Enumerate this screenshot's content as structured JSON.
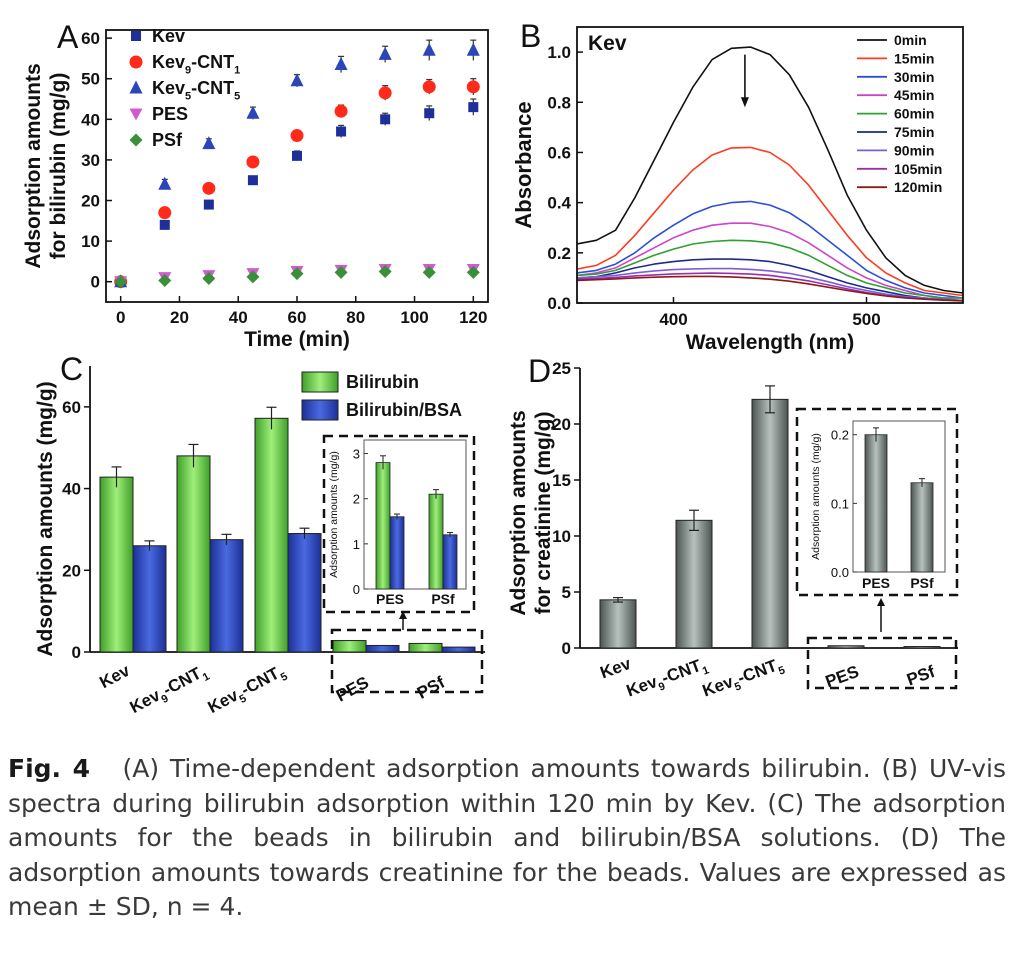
{
  "caption": {
    "label": "Fig. 4",
    "text": "(A) Time-dependent adsorption amounts towards bilirubin. (B) UV-vis spectra during bilirubin adsorption within 120 min by Kev. (C) The adsorption amounts for the beads in bilirubin and bilirubin/BSA solutions. (D) The adsorption amounts towards creatinine for the beads. Values are expressed as mean ± SD, n = 4."
  },
  "chart_data": [
    {
      "panel": "A",
      "type": "scatter",
      "xlabel": "Time (min)",
      "ylabel": "Adsorption amounts for bilirubin (mg/g)",
      "ylabel_lines": [
        "Adsorption amounts",
        "for bilirubin (mg/g)"
      ],
      "xlim": [
        -5,
        125
      ],
      "ylim": [
        -5,
        62
      ],
      "xticks": [
        0,
        20,
        40,
        60,
        80,
        100,
        120
      ],
      "yticks": [
        0,
        10,
        20,
        30,
        40,
        50,
        60
      ],
      "legend_position": "top-left",
      "x": [
        0,
        15,
        30,
        45,
        60,
        75,
        90,
        105,
        120
      ],
      "series": [
        {
          "name": "Kev",
          "marker": "square",
          "color": "#1f2f9a",
          "values": [
            0,
            14,
            19,
            25,
            31,
            37,
            40,
            41.5,
            43
          ],
          "errors": [
            0,
            0.8,
            0.8,
            1,
            1.2,
            1.5,
            1.5,
            1.8,
            2
          ]
        },
        {
          "name": "Kev9-CNT1",
          "base": "Kev",
          "sub1": "9",
          "mid": "-CNT",
          "sub2": "1",
          "marker": "circle",
          "color": "#ff2a1a",
          "values": [
            0,
            17,
            23,
            29.5,
            36,
            42,
            46.5,
            48,
            48
          ],
          "errors": [
            0,
            0.8,
            0.8,
            1,
            1.2,
            1.5,
            1.8,
            1.8,
            2
          ]
        },
        {
          "name": "Kev5-CNT5",
          "base": "Kev",
          "sub1": "5",
          "mid": "-CNT",
          "sub2": "5",
          "marker": "triangle-up",
          "color": "#2c45b8",
          "values": [
            0,
            24,
            34,
            41.5,
            49.5,
            53.5,
            56,
            57,
            57
          ],
          "errors": [
            0,
            1.2,
            1.2,
            1.5,
            1.5,
            2,
            2,
            2.5,
            2.5
          ]
        },
        {
          "name": "PES",
          "marker": "triangle-down",
          "color": "#d15ad1",
          "values": [
            0,
            1,
            1.5,
            2,
            2.5,
            2.8,
            3,
            3,
            3
          ],
          "errors": [
            0,
            0.3,
            0.3,
            0.3,
            0.3,
            0.3,
            0.3,
            0.3,
            0.3
          ]
        },
        {
          "name": "PSf",
          "marker": "diamond",
          "color": "#3a8f3a",
          "values": [
            0,
            0.3,
            0.8,
            1.2,
            2,
            2.3,
            2.5,
            2.3,
            2.3
          ],
          "errors": [
            0,
            0.3,
            0.3,
            0.3,
            0.3,
            0.3,
            0.3,
            0.3,
            0.3
          ]
        }
      ]
    },
    {
      "panel": "B",
      "type": "line",
      "title": "Kev",
      "xlabel": "Wavelength (nm)",
      "ylabel": "Absorbance",
      "xlim": [
        350,
        550
      ],
      "ylim": [
        0,
        1.1
      ],
      "xticks": [
        400,
        500
      ],
      "yticks": [
        0.0,
        0.2,
        0.4,
        0.6,
        0.8,
        1.0
      ],
      "legend_position": "top-right",
      "arrow": {
        "x": 437,
        "y_from": 0.99,
        "y_to": 0.78
      },
      "x": [
        350,
        360,
        370,
        380,
        390,
        400,
        410,
        420,
        430,
        440,
        450,
        460,
        470,
        480,
        490,
        500,
        510,
        520,
        530,
        540,
        550
      ],
      "series": [
        {
          "name": "0min",
          "color": "#111111",
          "values": [
            0.235,
            0.25,
            0.29,
            0.42,
            0.57,
            0.72,
            0.86,
            0.97,
            1.015,
            1.02,
            0.99,
            0.91,
            0.78,
            0.61,
            0.43,
            0.29,
            0.18,
            0.11,
            0.07,
            0.05,
            0.04
          ]
        },
        {
          "name": "15min",
          "color": "#ff3b1f",
          "values": [
            0.135,
            0.15,
            0.19,
            0.27,
            0.36,
            0.45,
            0.53,
            0.59,
            0.618,
            0.62,
            0.6,
            0.55,
            0.47,
            0.37,
            0.27,
            0.18,
            0.12,
            0.08,
            0.05,
            0.04,
            0.03
          ]
        },
        {
          "name": "30min",
          "color": "#2b4fd6",
          "values": [
            0.12,
            0.13,
            0.155,
            0.2,
            0.26,
            0.31,
            0.355,
            0.385,
            0.4,
            0.405,
            0.39,
            0.36,
            0.31,
            0.25,
            0.19,
            0.13,
            0.09,
            0.06,
            0.04,
            0.03,
            0.02
          ]
        },
        {
          "name": "45min",
          "color": "#cc44cc",
          "values": [
            0.11,
            0.12,
            0.14,
            0.18,
            0.22,
            0.26,
            0.29,
            0.31,
            0.318,
            0.318,
            0.305,
            0.28,
            0.24,
            0.19,
            0.14,
            0.1,
            0.07,
            0.05,
            0.03,
            0.02,
            0.02
          ]
        },
        {
          "name": "60min",
          "color": "#2fa02f",
          "values": [
            0.11,
            0.115,
            0.13,
            0.16,
            0.19,
            0.215,
            0.235,
            0.245,
            0.25,
            0.248,
            0.24,
            0.22,
            0.19,
            0.15,
            0.11,
            0.08,
            0.06,
            0.04,
            0.03,
            0.02,
            0.02
          ]
        },
        {
          "name": "75min",
          "color": "#1b2a8c",
          "values": [
            0.1,
            0.105,
            0.12,
            0.14,
            0.155,
            0.165,
            0.172,
            0.175,
            0.175,
            0.172,
            0.165,
            0.15,
            0.13,
            0.105,
            0.08,
            0.06,
            0.045,
            0.03,
            0.02,
            0.015,
            0.01
          ]
        },
        {
          "name": "90min",
          "color": "#7a5fd8",
          "values": [
            0.1,
            0.105,
            0.11,
            0.12,
            0.128,
            0.133,
            0.136,
            0.137,
            0.137,
            0.134,
            0.128,
            0.118,
            0.103,
            0.085,
            0.065,
            0.05,
            0.035,
            0.025,
            0.02,
            0.015,
            0.01
          ]
        },
        {
          "name": "105min",
          "color": "#9a2fa8",
          "values": [
            0.095,
            0.098,
            0.102,
            0.108,
            0.112,
            0.116,
            0.118,
            0.119,
            0.118,
            0.115,
            0.11,
            0.1,
            0.088,
            0.072,
            0.056,
            0.042,
            0.03,
            0.022,
            0.016,
            0.012,
            0.01
          ]
        },
        {
          "name": "120min",
          "color": "#8b1a1a",
          "values": [
            0.09,
            0.093,
            0.096,
            0.1,
            0.103,
            0.105,
            0.106,
            0.106,
            0.104,
            0.1,
            0.095,
            0.087,
            0.076,
            0.063,
            0.05,
            0.038,
            0.028,
            0.02,
            0.015,
            0.011,
            0.008
          ]
        }
      ]
    },
    {
      "panel": "C",
      "type": "bar",
      "ylabel": "Adsorption amounts (mg/g)",
      "ylim": [
        0,
        70
      ],
      "yticks": [
        0,
        20,
        40,
        60
      ],
      "legend_position": "top-right",
      "categories": [
        {
          "label": "Kev"
        },
        {
          "label": "Kev9-CNT1",
          "base": "Kev",
          "sub1": "9",
          "mid": "-CNT",
          "sub2": "1"
        },
        {
          "label": "Kev5-CNT5",
          "base": "Kev",
          "sub1": "5",
          "mid": "-CNT",
          "sub2": "5"
        },
        {
          "label": "PES"
        },
        {
          "label": "PSf"
        }
      ],
      "series": [
        {
          "name": "Bilirubin",
          "color": "#5fcf3f",
          "values": [
            42.8,
            48,
            57.2,
            2.8,
            2.1
          ],
          "errors": [
            2.5,
            2.8,
            2.7,
            0.15,
            0.1
          ]
        },
        {
          "name": "Bilirubin/BSA",
          "color": "#2a46c4",
          "values": [
            26,
            27.5,
            29,
            1.6,
            1.2
          ],
          "errors": [
            1.2,
            1.3,
            1.3,
            0.06,
            0.05
          ]
        }
      ],
      "inset": {
        "ylabel": "Adsorption amounts (mg/g)",
        "ylim": [
          0,
          3.3
        ],
        "yticks": [
          0,
          1,
          2,
          3
        ],
        "categories": [
          "PES",
          "PSf"
        ]
      }
    },
    {
      "panel": "D",
      "type": "bar",
      "ylabel": "Adsorption amounts for creatinine (mg/g)",
      "ylabel_lines": [
        "Adsorption amounts",
        "for creatinine (mg/g)"
      ],
      "ylim": [
        0,
        25
      ],
      "yticks": [
        0,
        5,
        10,
        15,
        20,
        25
      ],
      "color": "#7d8a87",
      "categories": [
        {
          "label": "Kev"
        },
        {
          "label": "Kev9-CNT1",
          "base": "Kev",
          "sub1": "9",
          "mid": "-CNT",
          "sub2": "1"
        },
        {
          "label": "Kev5-CNT5",
          "base": "Kev",
          "sub1": "5",
          "mid": "-CNT",
          "sub2": "5"
        },
        {
          "label": "PES"
        },
        {
          "label": "PSf"
        }
      ],
      "values": [
        4.3,
        11.4,
        22.2,
        0.2,
        0.13
      ],
      "errors": [
        0.2,
        0.9,
        1.2,
        0.01,
        0.006
      ],
      "inset": {
        "ylabel": "Adsorption amounts (mg/g)",
        "ylim": [
          0,
          0.22
        ],
        "yticks": [
          0.0,
          0.1,
          0.2
        ],
        "categories": [
          "PES",
          "PSf"
        ]
      }
    }
  ]
}
